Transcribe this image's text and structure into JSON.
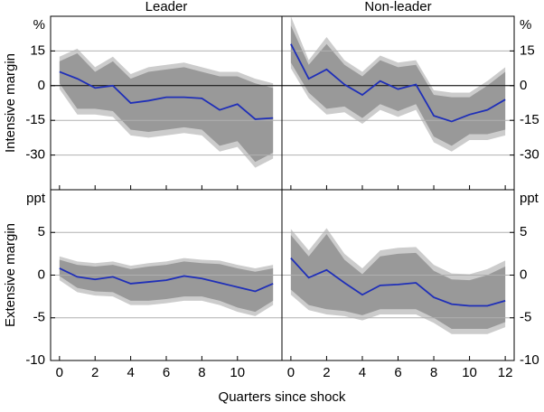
{
  "xlabel": "Quarters since shock",
  "chart_data": [
    {
      "type": "line",
      "title": "Leader",
      "ylabel": "Intensive margin",
      "unit": "%",
      "axis_side": "left",
      "x": [
        0,
        1,
        2,
        3,
        4,
        5,
        6,
        7,
        8,
        9,
        10,
        11,
        12
      ],
      "xlim": [
        -0.5,
        12.5
      ],
      "xticks": [
        0,
        2,
        4,
        6,
        8,
        10
      ],
      "ylim": [
        -45,
        30
      ],
      "yticks": [
        -30,
        -15,
        0,
        15
      ],
      "grid": true,
      "zero_line": true,
      "line_color": "#1f2fb8",
      "inner_color": "#999999",
      "outer_color": "#cccccc",
      "values": [
        6,
        3,
        -1,
        0,
        -7.5,
        -6.5,
        -5,
        -5,
        -5.5,
        -10.5,
        -8,
        -14.5,
        -14
      ],
      "bands": {
        "outer": {
          "upper": [
            12.5,
            16,
            8,
            12.5,
            5,
            8,
            9,
            10,
            8,
            6,
            6,
            3,
            1
          ],
          "lower": [
            -1.5,
            -12.5,
            -12.5,
            -13.5,
            -21.5,
            -22.5,
            -21.5,
            -20.5,
            -21.5,
            -28.5,
            -26.5,
            -35.5,
            -31.5
          ]
        },
        "inner": {
          "upper": [
            10.5,
            14,
            6,
            10.5,
            3,
            6,
            7,
            8,
            6,
            4,
            4,
            1,
            -1
          ],
          "lower": [
            1,
            -10,
            -10,
            -11,
            -19,
            -20,
            -19,
            -18,
            -19,
            -26,
            -24,
            -33,
            -29
          ]
        }
      }
    },
    {
      "type": "line",
      "title": "Non-leader",
      "unit": "%",
      "axis_side": "right",
      "x": [
        0,
        1,
        2,
        3,
        4,
        5,
        6,
        7,
        8,
        9,
        10,
        11,
        12
      ],
      "xlim": [
        -0.5,
        12.5
      ],
      "xticks": [
        0,
        2,
        4,
        6,
        8,
        10,
        12
      ],
      "ylim": [
        -45,
        30
      ],
      "yticks": [
        -30,
        -15,
        0,
        15
      ],
      "grid": true,
      "zero_line": true,
      "line_color": "#1f2fb8",
      "inner_color": "#999999",
      "outer_color": "#cccccc",
      "values": [
        18,
        3,
        7,
        0.5,
        -4,
        2,
        -1.5,
        0.5,
        -13,
        -15.5,
        -12.5,
        -10.5,
        -6
      ],
      "bands": {
        "outer": {
          "upper": [
            30,
            11,
            21,
            11,
            6,
            13,
            10,
            11,
            -2,
            -3,
            -3,
            2,
            8
          ],
          "lower": [
            7.5,
            -5.5,
            -12.5,
            -11.5,
            -16.5,
            -10.5,
            -13.5,
            -10.5,
            -24.5,
            -28.5,
            -23.5,
            -23.5,
            -21.5
          ]
        },
        "inner": {
          "upper": [
            26,
            9,
            18,
            9,
            4,
            11,
            8,
            9,
            -4,
            -5,
            -5,
            0,
            6
          ],
          "lower": [
            10,
            -3,
            -10,
            -9,
            -14,
            -8,
            -11,
            -8,
            -22,
            -26,
            -21,
            -21,
            -19
          ]
        }
      }
    },
    {
      "type": "line",
      "ylabel": "Extensive margin",
      "unit": "ppt",
      "axis_side": "left",
      "x": [
        0,
        1,
        2,
        3,
        4,
        5,
        6,
        7,
        8,
        9,
        10,
        11,
        12
      ],
      "xlim": [
        -0.5,
        12.5
      ],
      "xticks": [
        0,
        2,
        4,
        6,
        8,
        10
      ],
      "ylim": [
        -10,
        10
      ],
      "yticks": [
        -10,
        -5,
        0,
        5
      ],
      "grid": true,
      "zero_line": false,
      "line_color": "#1f2fb8",
      "inner_color": "#999999",
      "outer_color": "#cccccc",
      "values": [
        0.8,
        -0.2,
        -0.5,
        -0.2,
        -1,
        -0.8,
        -0.6,
        -0.1,
        -0.4,
        -0.9,
        -1.4,
        -1.9,
        -1
      ],
      "bands": {
        "outer": {
          "upper": [
            2.2,
            1.6,
            1.4,
            1.6,
            1.1,
            1.4,
            1.6,
            2,
            1.8,
            1.7,
            1.2,
            0.8,
            1.2
          ],
          "lower": [
            -0.6,
            -2,
            -2.4,
            -2.5,
            -3.5,
            -3.5,
            -3.3,
            -3,
            -3,
            -3.5,
            -4.3,
            -4.8,
            -3.5
          ]
        },
        "inner": {
          "upper": [
            1.8,
            1.2,
            1,
            1.2,
            0.7,
            1,
            1.2,
            1.6,
            1.4,
            1.3,
            0.8,
            0.4,
            0.8
          ],
          "lower": [
            -0.1,
            -1.5,
            -1.9,
            -2,
            -3,
            -3,
            -2.8,
            -2.5,
            -2.5,
            -3,
            -3.8,
            -4.3,
            -3
          ]
        }
      }
    },
    {
      "type": "line",
      "unit": "ppt",
      "axis_side": "right",
      "x": [
        0,
        1,
        2,
        3,
        4,
        5,
        6,
        7,
        8,
        9,
        10,
        11,
        12
      ],
      "xlim": [
        -0.5,
        12.5
      ],
      "xticks": [
        0,
        2,
        4,
        6,
        8,
        10,
        12
      ],
      "ylim": [
        -10,
        10
      ],
      "yticks": [
        -10,
        -5,
        0,
        5
      ],
      "grid": true,
      "zero_line": false,
      "line_color": "#1f2fb8",
      "inner_color": "#999999",
      "outer_color": "#cccccc",
      "values": [
        2,
        -0.3,
        0.6,
        -0.9,
        -2.3,
        -1.2,
        -1.1,
        -0.9,
        -2.6,
        -3.4,
        -3.6,
        -3.6,
        -3
      ],
      "bands": {
        "outer": {
          "upper": [
            5.4,
            2.9,
            5.5,
            2.5,
            0.8,
            2.9,
            3.2,
            3.3,
            1.2,
            0.2,
            0.1,
            0.7,
            1.7
          ],
          "lower": [
            -2.3,
            -4.1,
            -4.6,
            -4.8,
            -5.3,
            -4.6,
            -4.6,
            -4.6,
            -5.6,
            -6.9,
            -6.9,
            -6.9,
            -6.1
          ]
        },
        "inner": {
          "upper": [
            4.7,
            2.2,
            4.8,
            1.8,
            0.1,
            2.2,
            2.5,
            2.6,
            0.5,
            -0.5,
            -0.6,
            0,
            1
          ],
          "lower": [
            -1.7,
            -3.5,
            -4,
            -4.2,
            -4.7,
            -4,
            -4,
            -4,
            -5,
            -6.3,
            -6.3,
            -6.3,
            -5.5
          ]
        }
      }
    }
  ]
}
